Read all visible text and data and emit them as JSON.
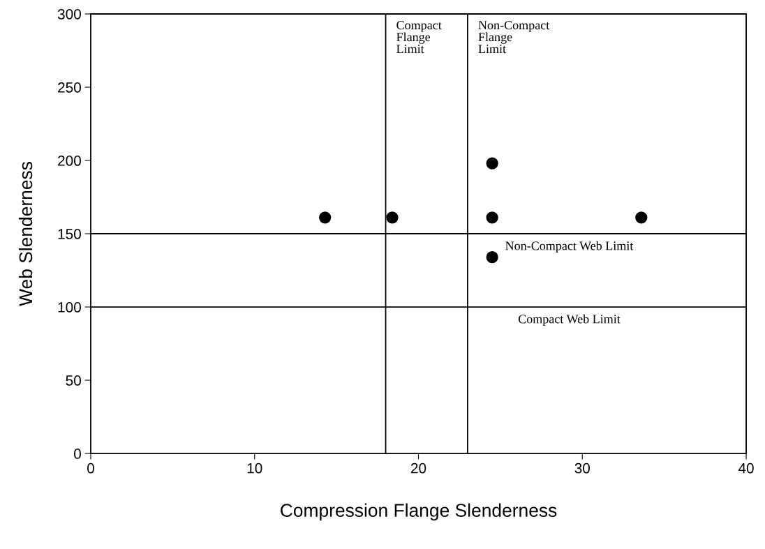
{
  "chart_data": {
    "type": "scatter",
    "xlabel": "Compression Flange Slenderness",
    "ylabel": "Web Slenderness",
    "x": [
      14.3,
      18.4,
      24.5,
      24.5,
      24.5,
      33.6
    ],
    "series": [
      {
        "color": "#000000",
        "values": [
          161,
          161,
          198,
          161,
          134,
          161
        ]
      }
    ],
    "marker": "circle",
    "xlim": [
      0,
      40
    ],
    "xticks": [
      0,
      10,
      20,
      30,
      40
    ],
    "ylim": [
      0,
      300
    ],
    "yticks": [
      0,
      50,
      100,
      150,
      200,
      250,
      300
    ],
    "ref_lines": [
      {
        "axis": "x",
        "value": 18,
        "label": "Compact\nFlange\nLimit",
        "color": "#000000"
      },
      {
        "axis": "x",
        "value": 23,
        "label": "Non-Compact\nFlange\nLimit",
        "color": "#000000"
      },
      {
        "axis": "y",
        "value": 150,
        "label": "Non-Compact Web Limit",
        "color": "#000000"
      },
      {
        "axis": "y",
        "value": 100,
        "label": "Compact Web Limit",
        "color": "#000000"
      }
    ],
    "grid": false,
    "legend": false
  }
}
